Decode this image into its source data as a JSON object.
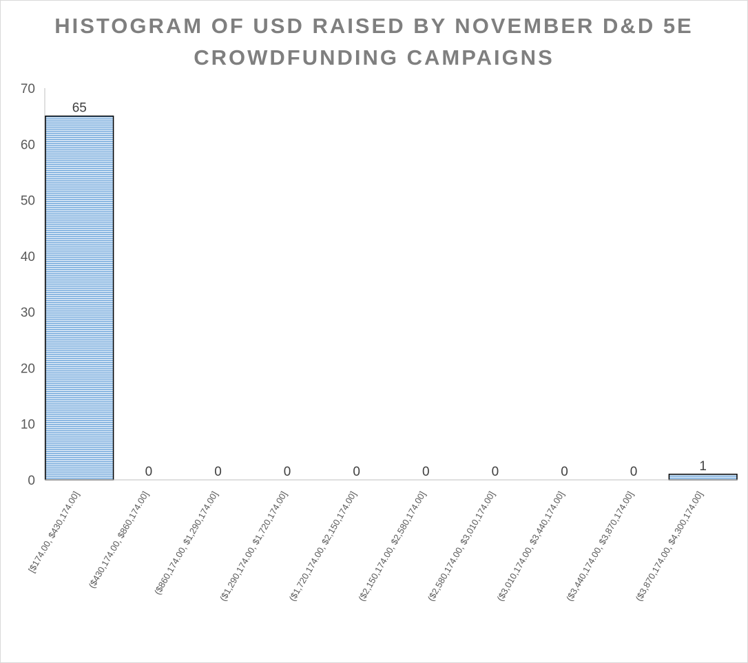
{
  "chart_data": {
    "type": "bar",
    "title_lines": [
      "HISTOGRAM OF USD RAISED BY NOVEMBER D&D 5E",
      "CROWDFUNDING CAMPAIGNS"
    ],
    "xlabel": "",
    "ylabel": "",
    "ylim": [
      0,
      70
    ],
    "yticks": [
      0,
      10,
      20,
      30,
      40,
      50,
      60,
      70
    ],
    "grid": false,
    "legend": "none",
    "categories": [
      "[$174.00, $430,174.00]",
      "($430,174.00, $860,174.00]",
      "($860,174.00, $1,290,174.00]",
      "($1,290,174.00, $1,720,174.00]",
      "($1,720,174.00, $2,150,174.00]",
      "($2,150,174.00, $2,580,174.00]",
      "($2,580,174.00, $3,010,174.00]",
      "($3,010,174.00, $3,440,174.00]",
      "($3,440,174.00, $3,870,174.00]",
      "($3,870,174.00, $4,300,174.00]"
    ],
    "values": [
      65,
      0,
      0,
      0,
      0,
      0,
      0,
      0,
      0,
      1
    ],
    "colors": {
      "bar_fill": "#bdd7ee",
      "bar_stripe": "#5b9bd5",
      "bar_border": "#000000",
      "axis": "#bfbfbf"
    }
  }
}
